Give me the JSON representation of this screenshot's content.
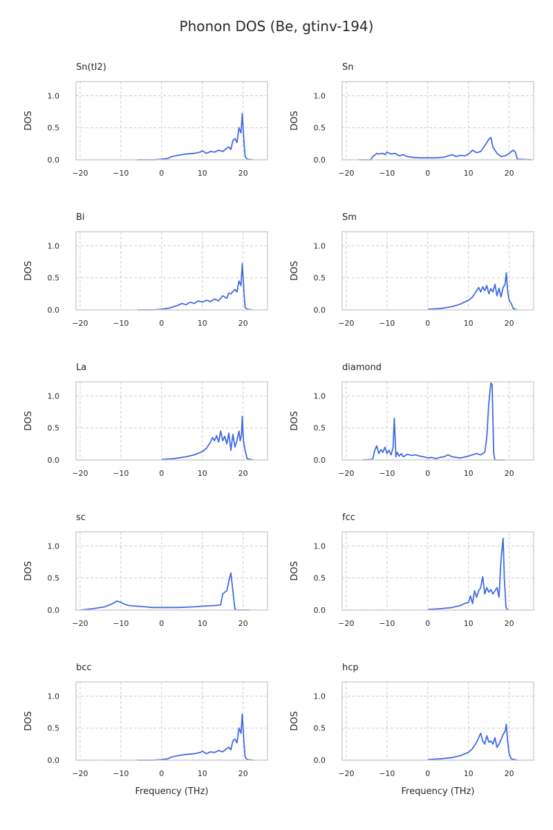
{
  "title": "Phonon DOS (Be, gtinv-194)",
  "colors": {
    "line": "#4169e1",
    "grid": "#cccccc",
    "frame": "#cccccc",
    "text": "#262626"
  },
  "chart_data": [
    {
      "type": "line",
      "title": "Sn(tI2)",
      "xlabel": "",
      "ylabel": "DOS",
      "xlim": [
        -21,
        26
      ],
      "ylim": [
        0,
        1.22
      ],
      "xticks": [
        -20,
        -10,
        0,
        10,
        20
      ],
      "yticks": [
        0.0,
        0.5,
        1.0
      ],
      "grid": true,
      "x": [
        -6,
        -2,
        0,
        1.5,
        2.5,
        4,
        6,
        8,
        9.5,
        10,
        11,
        12,
        13,
        14,
        15,
        16,
        16.5,
        17,
        17.5,
        18,
        18.5,
        19,
        19.5,
        19.8,
        20.2,
        20.5,
        21,
        22.5
      ],
      "y": [
        0,
        0,
        0.01,
        0.02,
        0.05,
        0.07,
        0.09,
        0.1,
        0.12,
        0.14,
        0.1,
        0.13,
        0.12,
        0.15,
        0.13,
        0.18,
        0.2,
        0.16,
        0.3,
        0.33,
        0.27,
        0.5,
        0.42,
        0.72,
        0.3,
        0.05,
        0.01,
        0
      ]
    },
    {
      "type": "line",
      "title": "Sn",
      "xlabel": "",
      "ylabel": "DOS",
      "xlim": [
        -21,
        26
      ],
      "ylim": [
        0,
        1.22
      ],
      "xticks": [
        -20,
        -10,
        0,
        10,
        20
      ],
      "yticks": [
        0.0,
        0.5,
        1.0
      ],
      "grid": true,
      "x": [
        -17,
        -14,
        -13.5,
        -13,
        -12.5,
        -12,
        -11,
        -10.5,
        -10,
        -9,
        -8,
        -7,
        -6,
        -5,
        -4,
        -2,
        0,
        2,
        4,
        5,
        6,
        7,
        8,
        9,
        10,
        11,
        12,
        13,
        14,
        15,
        15.5,
        16,
        17,
        18,
        19,
        20,
        21,
        21.5,
        22,
        25.5
      ],
      "y": [
        0,
        0,
        0.05,
        0.07,
        0.1,
        0.09,
        0.1,
        0.08,
        0.12,
        0.09,
        0.1,
        0.06,
        0.08,
        0.05,
        0.04,
        0.03,
        0.03,
        0.03,
        0.04,
        0.06,
        0.08,
        0.05,
        0.07,
        0.06,
        0.09,
        0.15,
        0.11,
        0.13,
        0.22,
        0.32,
        0.35,
        0.2,
        0.1,
        0.05,
        0.06,
        0.1,
        0.15,
        0.12,
        0.01,
        0
      ]
    },
    {
      "type": "line",
      "title": "Bi",
      "xlabel": "",
      "ylabel": "DOS",
      "xlim": [
        -21,
        26
      ],
      "ylim": [
        0,
        1.22
      ],
      "xticks": [
        -20,
        -10,
        0,
        10,
        20
      ],
      "yticks": [
        0.0,
        0.5,
        1.0
      ],
      "grid": true,
      "x": [
        -6,
        -2,
        0,
        2,
        3,
        4,
        5,
        6,
        7,
        8,
        9,
        10,
        11,
        12,
        13,
        14,
        15,
        16,
        16.5,
        17,
        18,
        18.5,
        19,
        19.5,
        19.8,
        20.2,
        20.5,
        21,
        22.5
      ],
      "y": [
        0,
        0,
        0.01,
        0.03,
        0.05,
        0.07,
        0.1,
        0.08,
        0.12,
        0.1,
        0.14,
        0.12,
        0.15,
        0.13,
        0.17,
        0.14,
        0.22,
        0.18,
        0.26,
        0.25,
        0.32,
        0.28,
        0.45,
        0.38,
        0.72,
        0.3,
        0.04,
        0.01,
        0
      ]
    },
    {
      "type": "line",
      "title": "Sm",
      "xlabel": "",
      "ylabel": "DOS",
      "xlim": [
        -21,
        26
      ],
      "ylim": [
        0,
        1.22
      ],
      "xticks": [
        -20,
        -10,
        0,
        10,
        20
      ],
      "yticks": [
        0.0,
        0.5,
        1.0
      ],
      "grid": true,
      "x": [
        0,
        3,
        6,
        8,
        10,
        11,
        12,
        12.5,
        13,
        13.5,
        14,
        14.5,
        15,
        15.5,
        16,
        16.5,
        17,
        17.5,
        18,
        18.5,
        19,
        19.3,
        19.6,
        20,
        20.5,
        21,
        22
      ],
      "y": [
        0.01,
        0.02,
        0.05,
        0.09,
        0.15,
        0.2,
        0.3,
        0.35,
        0.28,
        0.36,
        0.3,
        0.38,
        0.25,
        0.33,
        0.28,
        0.4,
        0.22,
        0.34,
        0.2,
        0.35,
        0.4,
        0.58,
        0.3,
        0.15,
        0.1,
        0.02,
        0
      ]
    },
    {
      "type": "line",
      "title": "La",
      "xlabel": "",
      "ylabel": "DOS",
      "xlim": [
        -21,
        26
      ],
      "ylim": [
        0,
        1.22
      ],
      "xticks": [
        -20,
        -10,
        0,
        10,
        20
      ],
      "yticks": [
        0.0,
        0.5,
        1.0
      ],
      "grid": true,
      "x": [
        0,
        3,
        6,
        8,
        10,
        11,
        12,
        12.5,
        13,
        13.5,
        14,
        14.5,
        15,
        15.5,
        16,
        16.5,
        17,
        17.5,
        18,
        18.5,
        19,
        19.3,
        19.6,
        19.8,
        20.1,
        20.5,
        21,
        22.5
      ],
      "y": [
        0.01,
        0.02,
        0.05,
        0.08,
        0.13,
        0.18,
        0.28,
        0.35,
        0.3,
        0.38,
        0.28,
        0.45,
        0.3,
        0.37,
        0.25,
        0.42,
        0.15,
        0.4,
        0.2,
        0.3,
        0.45,
        0.3,
        0.38,
        0.68,
        0.3,
        0.15,
        0.02,
        0
      ]
    },
    {
      "type": "line",
      "title": "diamond",
      "xlabel": "",
      "ylabel": "DOS",
      "xlim": [
        -21,
        26
      ],
      "ylim": [
        0,
        1.22
      ],
      "xticks": [
        -20,
        -10,
        0,
        10,
        20
      ],
      "yticks": [
        0.0,
        0.5,
        1.0
      ],
      "grid": true,
      "x": [
        -16,
        -13.5,
        -13,
        -12.5,
        -12,
        -11.5,
        -11,
        -10.5,
        -10,
        -9.5,
        -9,
        -8.5,
        -8.2,
        -7.8,
        -7.5,
        -7,
        -6.5,
        -6,
        -5,
        -4,
        -3,
        -2,
        -1,
        0,
        1,
        2,
        3,
        4,
        5,
        6,
        8,
        10,
        12,
        13,
        14,
        14.5,
        15,
        15.5,
        15.8,
        16.2,
        16.5,
        19
      ],
      "y": [
        0,
        0.01,
        0.15,
        0.22,
        0.1,
        0.16,
        0.12,
        0.2,
        0.1,
        0.15,
        0.08,
        0.2,
        0.65,
        0.05,
        0.12,
        0.06,
        0.1,
        0.05,
        0.09,
        0.07,
        0.08,
        0.06,
        0.05,
        0.03,
        0.04,
        0.02,
        0.04,
        0.05,
        0.08,
        0.05,
        0.03,
        0.06,
        0.1,
        0.08,
        0.12,
        0.35,
        0.9,
        1.2,
        1.18,
        0.1,
        0,
        0
      ]
    },
    {
      "type": "line",
      "title": "sc",
      "xlabel": "",
      "ylabel": "DOS",
      "xlim": [
        -21,
        26
      ],
      "ylim": [
        0,
        1.22
      ],
      "xticks": [
        -20,
        -10,
        0,
        10,
        20
      ],
      "yticks": [
        0.0,
        0.5,
        1.0
      ],
      "grid": true,
      "x": [
        -20,
        -17,
        -14,
        -12,
        -11,
        -10,
        -9,
        -8,
        -6,
        -4,
        -2,
        0,
        4,
        8,
        10,
        13,
        14.5,
        15,
        15.5,
        16,
        16.5,
        17,
        17.5,
        18,
        19,
        21.5
      ],
      "y": [
        0,
        0.02,
        0.05,
        0.1,
        0.14,
        0.12,
        0.09,
        0.07,
        0.06,
        0.05,
        0.04,
        0.04,
        0.04,
        0.05,
        0.06,
        0.07,
        0.08,
        0.25,
        0.28,
        0.3,
        0.45,
        0.58,
        0.3,
        0.01,
        0,
        0
      ]
    },
    {
      "type": "line",
      "title": "fcc",
      "xlabel": "",
      "ylabel": "DOS",
      "xlim": [
        -21,
        26
      ],
      "ylim": [
        0,
        1.22
      ],
      "xticks": [
        -20,
        -10,
        0,
        10,
        20
      ],
      "yticks": [
        0.0,
        0.5,
        1.0
      ],
      "grid": true,
      "x": [
        0,
        3,
        6,
        8,
        9,
        10,
        10.5,
        11,
        11.5,
        12,
        12.5,
        13,
        13.5,
        14,
        14.5,
        15,
        15.5,
        16,
        16.5,
        17,
        17.5,
        18,
        18.5,
        18.8,
        19.2,
        19.5,
        20
      ],
      "y": [
        0.01,
        0.02,
        0.04,
        0.07,
        0.1,
        0.12,
        0.22,
        0.1,
        0.3,
        0.2,
        0.3,
        0.35,
        0.52,
        0.25,
        0.35,
        0.28,
        0.32,
        0.25,
        0.3,
        0.35,
        0.2,
        0.8,
        1.12,
        0.5,
        0.05,
        0.01,
        0
      ]
    },
    {
      "type": "line",
      "title": "bcc",
      "xlabel": "Frequency (THz)",
      "ylabel": "DOS",
      "xlim": [
        -21,
        26
      ],
      "ylim": [
        0,
        1.22
      ],
      "xticks": [
        -20,
        -10,
        0,
        10,
        20
      ],
      "yticks": [
        0.0,
        0.5,
        1.0
      ],
      "grid": true,
      "x": [
        -6,
        -2,
        0,
        1.5,
        2.5,
        4,
        6,
        8,
        9.5,
        10,
        11,
        12,
        13,
        14,
        15,
        16,
        16.5,
        17,
        17.5,
        18,
        18.5,
        19,
        19.5,
        19.8,
        20.2,
        20.5,
        21,
        22.5
      ],
      "y": [
        0,
        0,
        0.01,
        0.02,
        0.05,
        0.07,
        0.09,
        0.1,
        0.12,
        0.14,
        0.1,
        0.13,
        0.12,
        0.15,
        0.13,
        0.18,
        0.2,
        0.16,
        0.3,
        0.33,
        0.27,
        0.5,
        0.42,
        0.72,
        0.3,
        0.05,
        0.01,
        0
      ]
    },
    {
      "type": "line",
      "title": "hcp",
      "xlabel": "Frequency (THz)",
      "ylabel": "DOS",
      "xlim": [
        -21,
        26
      ],
      "ylim": [
        0,
        1.22
      ],
      "xticks": [
        -20,
        -10,
        0,
        10,
        20
      ],
      "yticks": [
        0.0,
        0.5,
        1.0
      ],
      "grid": true,
      "x": [
        0,
        3,
        6,
        8,
        10,
        11,
        12,
        12.5,
        13,
        13.5,
        14,
        14.5,
        15,
        15.5,
        16,
        16.5,
        17,
        17.5,
        18,
        18.5,
        19,
        19.3,
        19.6,
        20,
        20.5,
        22
      ],
      "y": [
        0.01,
        0.02,
        0.04,
        0.07,
        0.12,
        0.18,
        0.28,
        0.35,
        0.42,
        0.3,
        0.25,
        0.38,
        0.28,
        0.3,
        0.25,
        0.35,
        0.2,
        0.25,
        0.32,
        0.4,
        0.45,
        0.56,
        0.3,
        0.1,
        0.02,
        0
      ]
    }
  ]
}
